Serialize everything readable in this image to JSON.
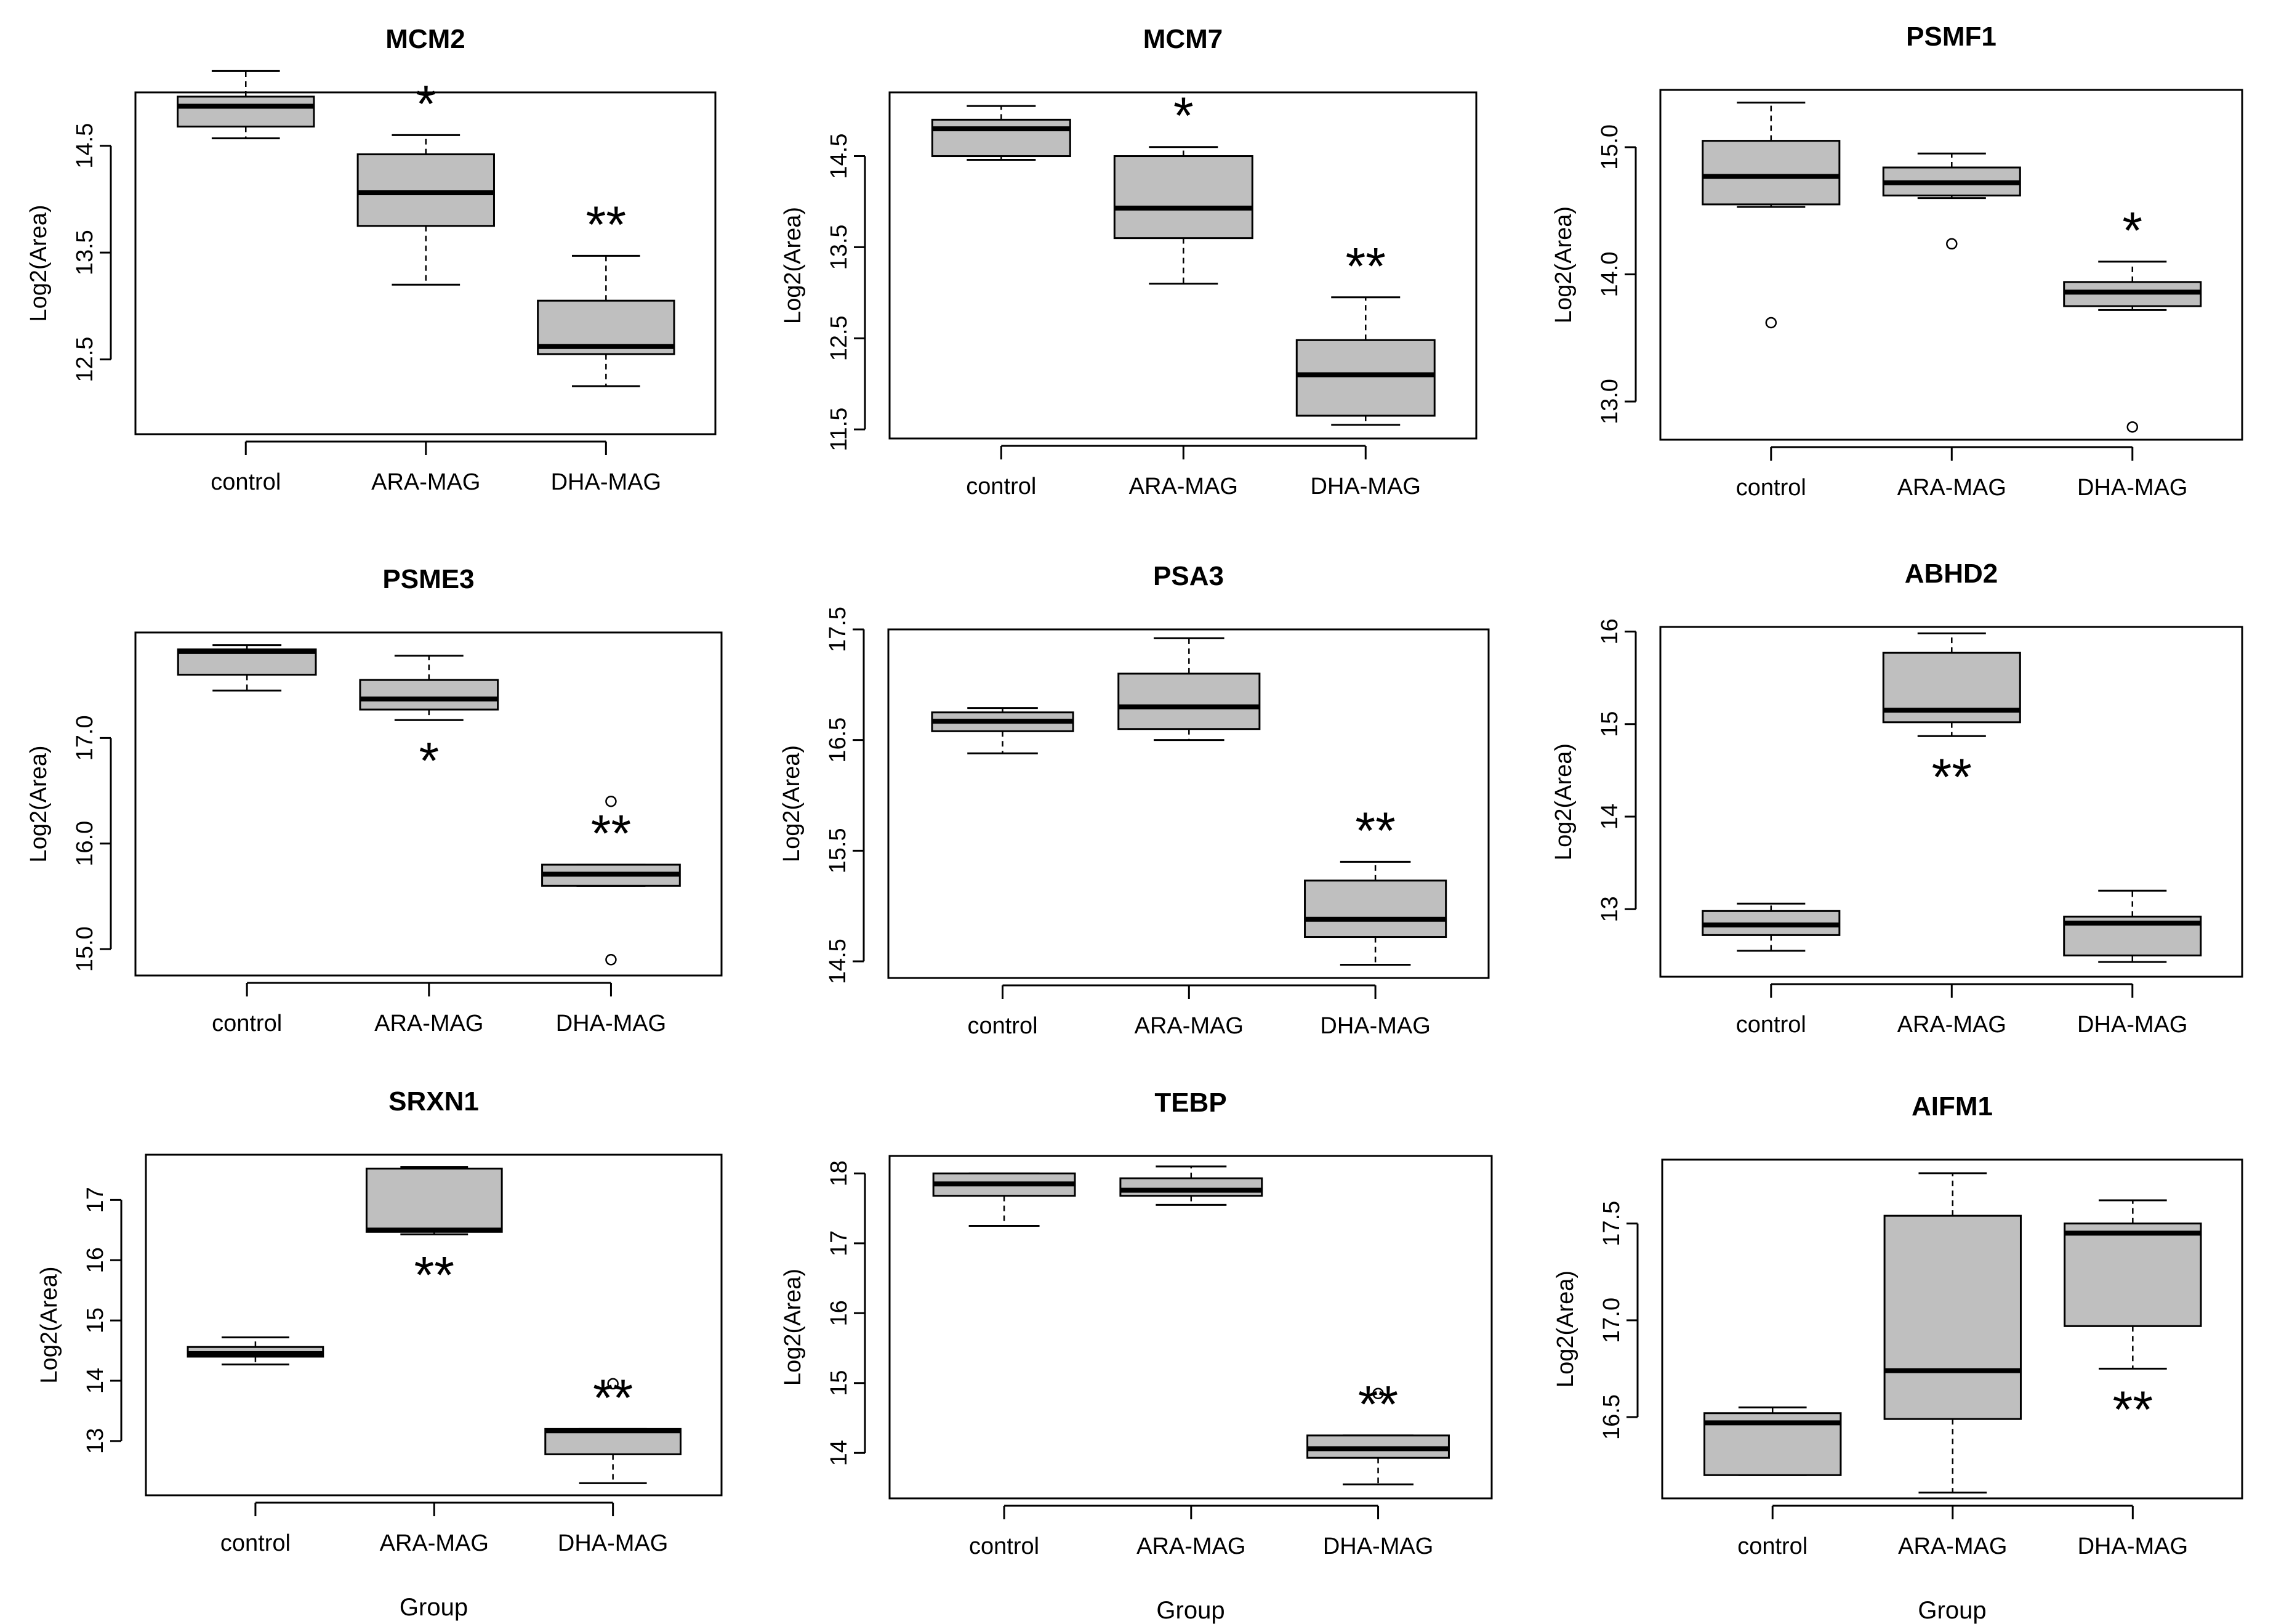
{
  "chart_data": [
    {
      "type": "box",
      "title": "MCM2",
      "ylabel": "Log2(Area)",
      "xlabel": "",
      "ylim": [
        11.8,
        15.0
      ],
      "yticks": [
        "12.5",
        "13.5",
        "14.5"
      ],
      "categories": [
        "control",
        "ARA-MAG",
        "DHA-MAG"
      ],
      "boxes": [
        {
          "min": 14.57,
          "q1": 14.68,
          "median": 14.87,
          "q3": 14.96,
          "max": 15.2,
          "outliers": []
        },
        {
          "min": 13.2,
          "q1": 13.75,
          "median": 14.06,
          "q3": 14.42,
          "max": 14.6,
          "outliers": []
        },
        {
          "min": 12.25,
          "q1": 12.55,
          "median": 12.62,
          "q3": 13.05,
          "max": 13.47,
          "outliers": []
        }
      ],
      "annotations": [
        "",
        "*",
        "**"
      ],
      "annotation_side": [
        "",
        "above",
        "above"
      ]
    },
    {
      "type": "box",
      "title": "MCM7",
      "ylabel": "Log2(Area)",
      "xlabel": "",
      "ylim": [
        11.4,
        15.2
      ],
      "yticks": [
        "11.5",
        "12.5",
        "13.5",
        "14.5"
      ],
      "categories": [
        "control",
        "ARA-MAG",
        "DHA-MAG"
      ],
      "boxes": [
        {
          "min": 14.46,
          "q1": 14.5,
          "median": 14.8,
          "q3": 14.9,
          "max": 15.05,
          "outliers": []
        },
        {
          "min": 13.1,
          "q1": 13.6,
          "median": 13.93,
          "q3": 14.5,
          "max": 14.6,
          "outliers": []
        },
        {
          "min": 11.55,
          "q1": 11.65,
          "median": 12.1,
          "q3": 12.48,
          "max": 12.95,
          "outliers": []
        }
      ],
      "annotations": [
        "",
        "*",
        "**"
      ],
      "annotation_side": [
        "",
        "above",
        "above"
      ]
    },
    {
      "type": "box",
      "title": "PSMF1",
      "ylabel": "Log2(Area)",
      "xlabel": "",
      "ylim": [
        12.7,
        15.45
      ],
      "yticks": [
        "13.0",
        "14.0",
        "15.0"
      ],
      "categories": [
        "control",
        "ARA-MAG",
        "DHA-MAG"
      ],
      "boxes": [
        {
          "min": 14.53,
          "q1": 14.55,
          "median": 14.77,
          "q3": 15.05,
          "max": 15.35,
          "outliers": [
            13.62
          ]
        },
        {
          "min": 14.6,
          "q1": 14.62,
          "median": 14.72,
          "q3": 14.84,
          "max": 14.95,
          "outliers": [
            14.24
          ]
        },
        {
          "min": 13.72,
          "q1": 13.75,
          "median": 13.86,
          "q3": 13.94,
          "max": 14.1,
          "outliers": [
            12.8
          ]
        }
      ],
      "annotations": [
        "",
        "",
        "*"
      ],
      "annotation_side": [
        "",
        "",
        "above"
      ]
    },
    {
      "type": "box",
      "title": "PSME3",
      "ylabel": "Log2(Area)",
      "xlabel": "",
      "ylim": [
        14.75,
        18.0
      ],
      "yticks": [
        "15.0",
        "16.0",
        "17.0"
      ],
      "categories": [
        "control",
        "ARA-MAG",
        "DHA-MAG"
      ],
      "boxes": [
        {
          "min": 17.45,
          "q1": 17.6,
          "median": 17.82,
          "q3": 17.84,
          "max": 17.88,
          "outliers": []
        },
        {
          "min": 17.17,
          "q1": 17.27,
          "median": 17.37,
          "q3": 17.55,
          "max": 17.78,
          "outliers": []
        },
        {
          "min": 15.6,
          "q1": 15.6,
          "median": 15.71,
          "q3": 15.8,
          "max": 15.8,
          "outliers": [
            16.4,
            14.9
          ]
        }
      ],
      "annotations": [
        "",
        "*",
        "**"
      ],
      "annotation_side": [
        "",
        "below",
        "above"
      ]
    },
    {
      "type": "box",
      "title": "PSA3",
      "ylabel": "Log2(Area)",
      "xlabel": "",
      "ylim": [
        14.35,
        17.5
      ],
      "yticks": [
        "14.5",
        "15.5",
        "16.5",
        "17.5"
      ],
      "categories": [
        "control",
        "ARA-MAG",
        "DHA-MAG"
      ],
      "boxes": [
        {
          "min": 16.38,
          "q1": 16.58,
          "median": 16.67,
          "q3": 16.75,
          "max": 16.79,
          "outliers": []
        },
        {
          "min": 16.5,
          "q1": 16.6,
          "median": 16.8,
          "q3": 17.1,
          "max": 17.42,
          "outliers": []
        },
        {
          "min": 14.47,
          "q1": 14.72,
          "median": 14.88,
          "q3": 15.23,
          "max": 15.4,
          "outliers": []
        }
      ],
      "annotations": [
        "",
        "",
        "**"
      ],
      "annotation_side": [
        "",
        "",
        "above"
      ]
    },
    {
      "type": "box",
      "title": "ABHD2",
      "ylabel": "Log2(Area)",
      "xlabel": "",
      "ylim": [
        12.27,
        16.05
      ],
      "yticks": [
        "13",
        "14",
        "15",
        "16"
      ],
      "categories": [
        "control",
        "ARA-MAG",
        "DHA-MAG"
      ],
      "boxes": [
        {
          "min": 12.55,
          "q1": 12.72,
          "median": 12.83,
          "q3": 12.98,
          "max": 13.06,
          "outliers": []
        },
        {
          "min": 14.87,
          "q1": 15.02,
          "median": 15.15,
          "q3": 15.77,
          "max": 15.98,
          "outliers": []
        },
        {
          "min": 12.43,
          "q1": 12.5,
          "median": 12.85,
          "q3": 12.92,
          "max": 13.2,
          "outliers": []
        }
      ],
      "annotations": [
        "",
        "**",
        ""
      ],
      "annotation_side": [
        "",
        "below",
        ""
      ]
    },
    {
      "type": "box",
      "title": "SRXN1",
      "ylabel": "Log2(Area)",
      "xlabel": "Group",
      "ylim": [
        12.1,
        17.75
      ],
      "yticks": [
        "13",
        "14",
        "15",
        "16",
        "17"
      ],
      "categories": [
        "control",
        "ARA-MAG",
        "DHA-MAG"
      ],
      "boxes": [
        {
          "min": 14.27,
          "q1": 14.4,
          "median": 14.45,
          "q3": 14.56,
          "max": 14.72,
          "outliers": []
        },
        {
          "min": 16.43,
          "q1": 16.47,
          "median": 16.5,
          "q3": 17.52,
          "max": 17.55,
          "outliers": []
        },
        {
          "min": 12.3,
          "q1": 12.78,
          "median": 13.17,
          "q3": 13.2,
          "max": 13.2,
          "outliers": [
            13.95
          ]
        }
      ],
      "annotations": [
        "",
        "**",
        "**"
      ],
      "annotation_side": [
        "",
        "below",
        "above"
      ]
    },
    {
      "type": "box",
      "title": "TEBP",
      "ylabel": "Log2(Area)",
      "xlabel": "Group",
      "ylim": [
        13.35,
        18.25
      ],
      "yticks": [
        "14",
        "15",
        "16",
        "17",
        "18"
      ],
      "categories": [
        "control",
        "ARA-MAG",
        "DHA-MAG"
      ],
      "boxes": [
        {
          "min": 17.25,
          "q1": 17.68,
          "median": 17.85,
          "q3": 18.0,
          "max": 18.0,
          "outliers": []
        },
        {
          "min": 17.55,
          "q1": 17.68,
          "median": 17.76,
          "q3": 17.93,
          "max": 18.1,
          "outliers": []
        },
        {
          "min": 13.55,
          "q1": 13.93,
          "median": 14.06,
          "q3": 14.25,
          "max": 14.25,
          "outliers": [
            14.85
          ]
        }
      ],
      "annotations": [
        "",
        "",
        "**"
      ],
      "annotation_side": [
        "",
        "",
        "above"
      ]
    },
    {
      "type": "box",
      "title": "AIFM1",
      "ylabel": "Log2(Area)",
      "xlabel": "Group",
      "ylim": [
        16.08,
        17.83
      ],
      "yticks": [
        "16.5",
        "17.0",
        "17.5"
      ],
      "categories": [
        "control",
        "ARA-MAG",
        "DHA-MAG"
      ],
      "boxes": [
        {
          "min": 16.2,
          "q1": 16.2,
          "median": 16.47,
          "q3": 16.52,
          "max": 16.55,
          "outliers": []
        },
        {
          "min": 16.11,
          "q1": 16.49,
          "median": 16.74,
          "q3": 17.54,
          "max": 17.76,
          "outliers": []
        },
        {
          "min": 16.75,
          "q1": 16.97,
          "median": 17.45,
          "q3": 17.5,
          "max": 17.62,
          "outliers": []
        }
      ],
      "annotations": [
        "",
        "",
        "**"
      ],
      "annotation_side": [
        "",
        "",
        "below"
      ]
    }
  ]
}
